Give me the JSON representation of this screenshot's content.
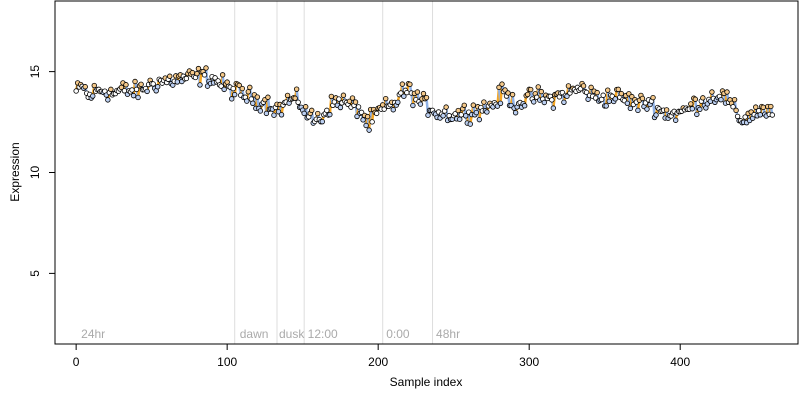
{
  "chart_data": {
    "type": "scatter",
    "title": "",
    "xlabel": "Sample index",
    "ylabel": "Expression",
    "xlim": [
      -14,
      478
    ],
    "ylim": [
      1.5,
      18.5
    ],
    "x_ticks": [
      0,
      100,
      200,
      300,
      400
    ],
    "y_ticks": [
      5,
      10,
      15
    ],
    "grid": false,
    "legend": "none",
    "phase_markers": [
      {
        "x": 105,
        "label": ""
      },
      {
        "x": 133,
        "label": ""
      },
      {
        "x": 151,
        "label": ""
      },
      {
        "x": 203,
        "label": ""
      },
      {
        "x": 236,
        "label": ""
      }
    ],
    "phase_labels": [
      {
        "x": 2,
        "label": "24hr"
      },
      {
        "x": 107,
        "label": "dawn"
      },
      {
        "x": 133,
        "label": "dusk"
      },
      {
        "x": 152,
        "label": "12:00"
      },
      {
        "x": 204,
        "label": "0:00"
      },
      {
        "x": 237,
        "label": "48hr"
      }
    ],
    "series": [
      {
        "color": "#000000",
        "x": [],
        "y": []
      }
    ],
    "keyframes": [
      [
        0,
        14.0
      ],
      [
        5,
        14.3
      ],
      [
        8,
        13.7
      ],
      [
        12,
        14.0
      ],
      [
        18,
        14.1
      ],
      [
        25,
        13.9
      ],
      [
        30,
        14.1
      ],
      [
        40,
        14.0
      ],
      [
        48,
        14.3
      ],
      [
        55,
        14.5
      ],
      [
        65,
        14.6
      ],
      [
        75,
        14.7
      ],
      [
        85,
        14.8
      ],
      [
        92,
        14.6
      ],
      [
        100,
        14.2
      ],
      [
        110,
        13.9
      ],
      [
        120,
        13.6
      ],
      [
        128,
        13.4
      ],
      [
        135,
        13.1
      ],
      [
        140,
        13.6
      ],
      [
        148,
        13.5
      ],
      [
        152,
        13.0
      ],
      [
        157,
        12.6
      ],
      [
        162,
        12.7
      ],
      [
        168,
        13.3
      ],
      [
        175,
        13.6
      ],
      [
        182,
        13.3
      ],
      [
        187,
        13.2
      ],
      [
        192,
        12.5
      ],
      [
        196,
        12.6
      ],
      [
        200,
        13.0
      ],
      [
        205,
        13.2
      ],
      [
        210,
        13.3
      ],
      [
        215,
        13.9
      ],
      [
        220,
        14.1
      ],
      [
        225,
        13.7
      ],
      [
        230,
        13.4
      ],
      [
        236,
        13.2
      ],
      [
        240,
        12.9
      ],
      [
        245,
        13.0
      ],
      [
        250,
        12.8
      ],
      [
        258,
        13.0
      ],
      [
        265,
        13.1
      ],
      [
        272,
        13.2
      ],
      [
        278,
        13.5
      ],
      [
        283,
        14.0
      ],
      [
        290,
        13.4
      ],
      [
        298,
        13.6
      ],
      [
        305,
        13.8
      ],
      [
        312,
        13.6
      ],
      [
        320,
        13.8
      ],
      [
        328,
        14.0
      ],
      [
        335,
        14.2
      ],
      [
        342,
        13.8
      ],
      [
        350,
        13.7
      ],
      [
        358,
        13.8
      ],
      [
        365,
        13.6
      ],
      [
        372,
        13.4
      ],
      [
        380,
        13.5
      ],
      [
        388,
        13.0
      ],
      [
        395,
        12.9
      ],
      [
        402,
        13.0
      ],
      [
        410,
        13.4
      ],
      [
        418,
        13.6
      ],
      [
        425,
        13.9
      ],
      [
        430,
        13.7
      ],
      [
        435,
        13.2
      ],
      [
        440,
        12.6
      ],
      [
        446,
        12.8
      ],
      [
        452,
        13.1
      ],
      [
        457,
        13.0
      ],
      [
        461,
        12.8
      ]
    ],
    "point_count": 462,
    "line_colors": {
      "high": "#f5a623",
      "low": "#8fb1e6"
    },
    "point_fills": {
      "high": "#f5c98a",
      "low": "#bcd0f2",
      "mid": "#ffffff"
    }
  }
}
